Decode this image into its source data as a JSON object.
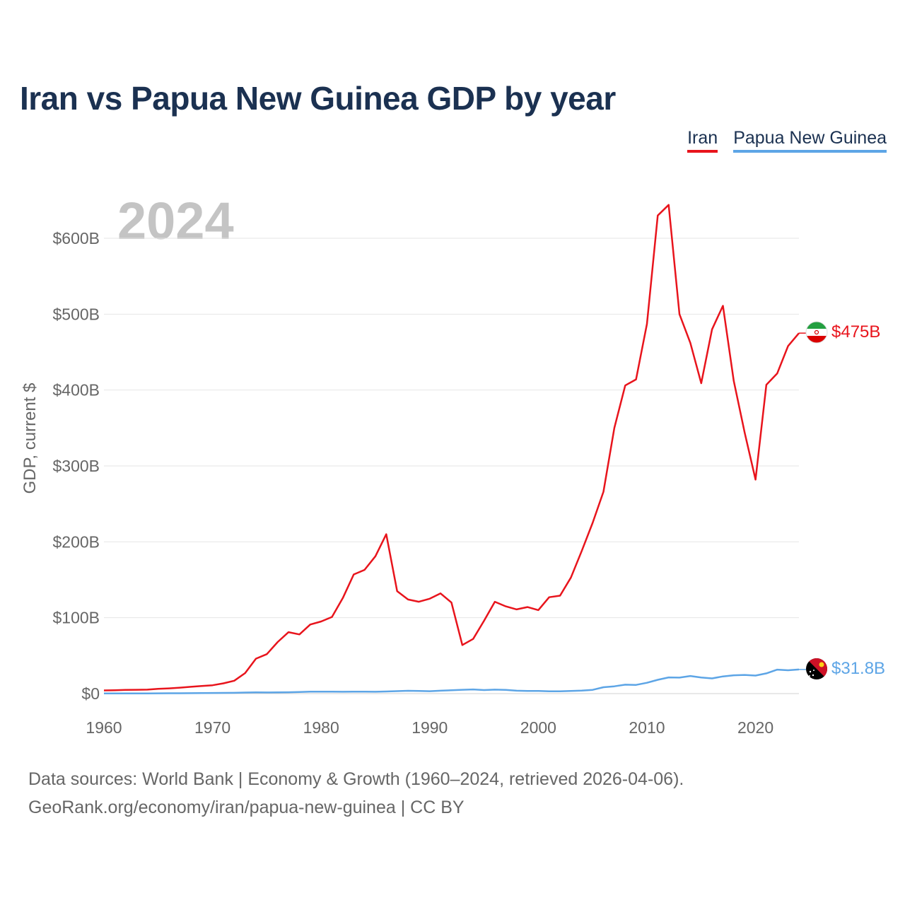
{
  "title": "Iran vs Papua New Guinea GDP by year",
  "legend": {
    "iran": "Iran",
    "png": "Papua New Guinea"
  },
  "year_watermark": "2024",
  "y_axis_label": "GDP, current $",
  "end_labels": {
    "iran": "$475B",
    "png": "$31.8B"
  },
  "sources": {
    "line1": "Data sources: World Bank | Economy & Growth (1960–2024, retrieved 2026-04-06).",
    "line2": "GeoRank.org/economy/iran/papua-new-guinea | CC BY"
  },
  "colors": {
    "iran": "#e8141c",
    "png": "#5da5e6",
    "grid": "#e6e6e6",
    "tick": "#666666"
  },
  "chart_data": {
    "type": "line",
    "title": "Iran vs Papua New Guinea GDP by year",
    "xlabel": "",
    "ylabel": "GDP, current $",
    "xlim": [
      1960,
      2024
    ],
    "ylim": [
      0,
      600
    ],
    "y_unit": "billion USD",
    "x_ticks": [
      1960,
      1970,
      1980,
      1990,
      2000,
      2010,
      2020
    ],
    "y_ticks": [
      {
        "value": 0,
        "label": "$0"
      },
      {
        "value": 100,
        "label": "$100B"
      },
      {
        "value": 200,
        "label": "$200B"
      },
      {
        "value": 300,
        "label": "$300B"
      },
      {
        "value": 400,
        "label": "$400B"
      },
      {
        "value": 500,
        "label": "$500B"
      },
      {
        "value": 600,
        "label": "$600B"
      }
    ],
    "x": [
      1960,
      1961,
      1962,
      1963,
      1964,
      1965,
      1966,
      1967,
      1968,
      1969,
      1970,
      1971,
      1972,
      1973,
      1974,
      1975,
      1976,
      1977,
      1978,
      1979,
      1980,
      1981,
      1982,
      1983,
      1984,
      1985,
      1986,
      1987,
      1988,
      1989,
      1990,
      1991,
      1992,
      1993,
      1994,
      1995,
      1996,
      1997,
      1998,
      1999,
      2000,
      2001,
      2002,
      2003,
      2004,
      2005,
      2006,
      2007,
      2008,
      2009,
      2010,
      2011,
      2012,
      2013,
      2014,
      2015,
      2016,
      2017,
      2018,
      2019,
      2020,
      2021,
      2022,
      2023,
      2024
    ],
    "series": [
      {
        "name": "Iran",
        "values": [
          4.2,
          4.5,
          4.8,
          5.0,
          5.2,
          6.2,
          6.9,
          7.8,
          8.9,
          10.0,
          11.0,
          13.5,
          17.0,
          27.0,
          46.0,
          52.0,
          68.0,
          81.0,
          78.0,
          91.0,
          95.0,
          101.0,
          126.0,
          157.0,
          163.0,
          181.0,
          210.0,
          135.0,
          124.0,
          121.0,
          125.0,
          132.0,
          120.0,
          64.0,
          72.0,
          96.0,
          121.0,
          115.0,
          111.0,
          114.0,
          110.0,
          127.0,
          129.0,
          153.0,
          188.0,
          225.0,
          266.0,
          350.0,
          406.0,
          414.0,
          487.0,
          630.0,
          644.0,
          500.0,
          462.0,
          409.0,
          480.0,
          511.0,
          412.0,
          344.0,
          282.0,
          407.0,
          422.0,
          458.0,
          475.0
        ]
      },
      {
        "name": "Papua New Guinea",
        "values": [
          0.2,
          0.2,
          0.3,
          0.3,
          0.3,
          0.4,
          0.5,
          0.5,
          0.6,
          0.7,
          0.8,
          0.9,
          1.0,
          1.4,
          1.6,
          1.5,
          1.6,
          1.8,
          2.1,
          2.5,
          2.6,
          2.6,
          2.4,
          2.6,
          2.6,
          2.4,
          2.8,
          3.3,
          3.7,
          3.5,
          3.2,
          3.8,
          4.4,
          5.0,
          5.5,
          4.7,
          5.2,
          4.9,
          3.8,
          3.5,
          3.5,
          3.1,
          3.0,
          3.5,
          3.9,
          4.9,
          8.4,
          9.6,
          11.7,
          11.5,
          14.3,
          18.2,
          21.3,
          21.1,
          23.2,
          21.2,
          20.0,
          22.6,
          24.1,
          24.6,
          23.8,
          26.6,
          31.6,
          30.7,
          31.8
        ]
      }
    ]
  }
}
